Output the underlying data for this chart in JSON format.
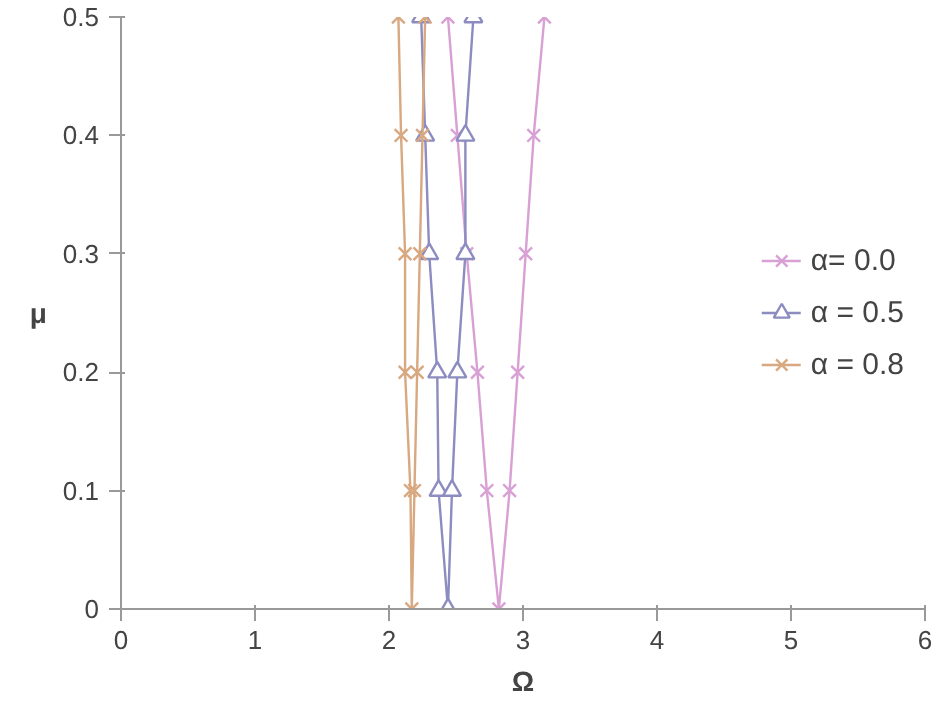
{
  "chart_data": {
    "type": "line",
    "xlabel": "Ω",
    "ylabel": "μ",
    "xlim": [
      0,
      6
    ],
    "ylim": [
      0,
      0.5
    ],
    "xticks": [
      0,
      1,
      2,
      3,
      4,
      5,
      6
    ],
    "yticks": [
      0,
      0.1,
      0.2,
      0.3,
      0.4,
      0.5
    ],
    "grid": false,
    "legend": "right",
    "series": [
      {
        "name": "α= 0.0",
        "color": "#d8a0d4",
        "marker": "cross",
        "x": [
          2.44,
          2.51,
          2.58,
          2.66,
          2.73,
          2.82,
          2.9,
          2.96,
          3.02,
          3.08,
          3.16
        ],
        "values": [
          0.5,
          0.4,
          0.3,
          0.2,
          0.1,
          0,
          0.1,
          0.2,
          0.3,
          0.4,
          0.5
        ]
      },
      {
        "name": "α = 0.5",
        "color": "#8c8cc0",
        "marker": "triangle",
        "x": [
          2.24,
          2.27,
          2.3,
          2.36,
          2.37,
          2.44,
          2.47,
          2.51,
          2.57,
          2.57,
          2.63
        ],
        "values": [
          0.5,
          0.4,
          0.3,
          0.2,
          0.1,
          0,
          0.1,
          0.2,
          0.3,
          0.4,
          0.5
        ]
      },
      {
        "name": "α = 0.8",
        "color": "#d8a880",
        "marker": "cross",
        "x": [
          2.07,
          2.09,
          2.12,
          2.12,
          2.16,
          2.17,
          2.19,
          2.21,
          2.23,
          2.25,
          2.27
        ],
        "values": [
          0.5,
          0.4,
          0.3,
          0.2,
          0.1,
          0,
          0.1,
          0.2,
          0.3,
          0.4,
          0.5
        ]
      }
    ]
  }
}
